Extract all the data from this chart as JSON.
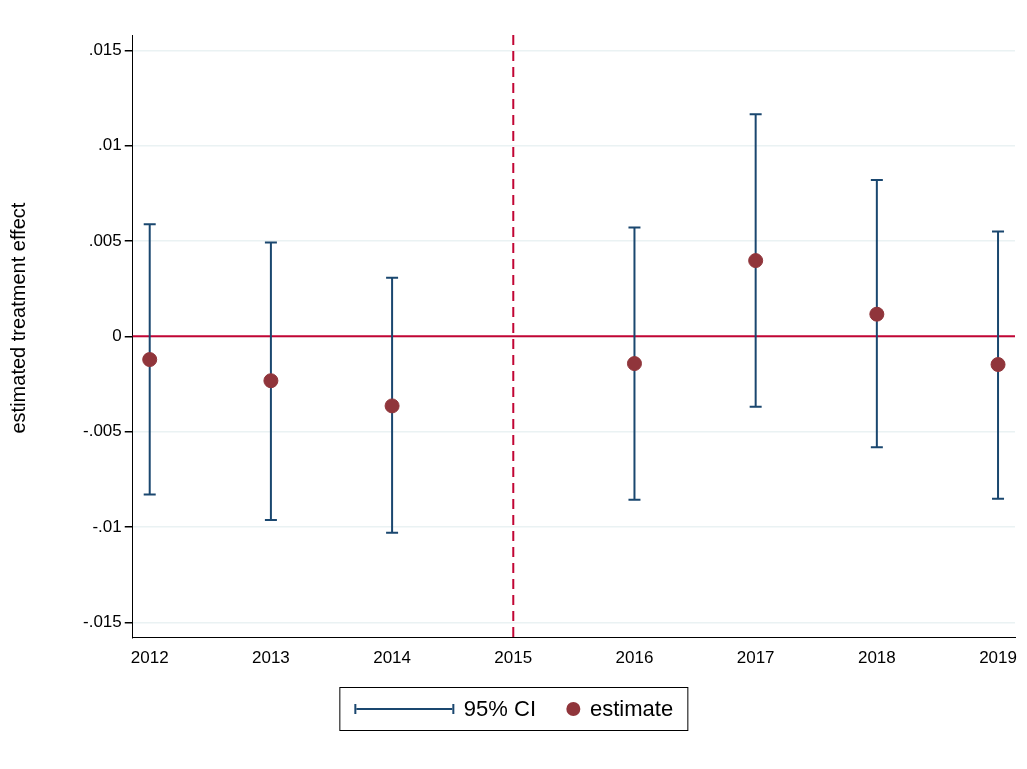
{
  "chart_data": {
    "type": "scatter",
    "ylabel": "estimated treatment effect",
    "x": [
      2012,
      2013,
      2014,
      2016,
      2017,
      2018,
      2019
    ],
    "series": [
      {
        "name": "estimate",
        "color": "#90353b",
        "marker": "circle",
        "values": [
          -0.00122,
          -0.00233,
          -0.00365,
          -0.00143,
          0.00397,
          0.00116,
          -0.00148
        ],
        "errors": [
          [
            -0.0083,
            0.00587
          ],
          [
            -0.00963,
            0.00492
          ],
          [
            -0.0103,
            0.00307
          ],
          [
            -0.00857,
            0.00571
          ],
          [
            -0.0037,
            0.01164
          ],
          [
            -0.00582,
            0.0082
          ],
          [
            -0.00852,
            0.0055
          ]
        ]
      }
    ],
    "annotations": [
      "95% CI"
    ],
    "xlim": [
      2011.86,
      2019.14
    ],
    "xticks": [
      2012,
      2013,
      2014,
      2015,
      2016,
      2017,
      2018,
      2019
    ],
    "ylim": [
      -0.0158,
      0.0158
    ],
    "yticks": [
      {
        "value": -0.015,
        "label": "-.015"
      },
      {
        "value": -0.01,
        "label": "-.01"
      },
      {
        "value": -0.005,
        "label": "-.005"
      },
      0,
      {
        "value": 0.005,
        "label": ".005"
      },
      {
        "value": 0.01,
        "label": ".01"
      },
      {
        "value": 0.015,
        "label": ".015"
      }
    ],
    "ref_lines": [
      {
        "axis": "y",
        "value": 0,
        "color": "#c10534",
        "line_style": "solid"
      },
      {
        "axis": "x",
        "value": 2015,
        "color": "#c10534",
        "line_style": "dashed"
      }
    ],
    "grid": "y",
    "legend": "bottom"
  }
}
